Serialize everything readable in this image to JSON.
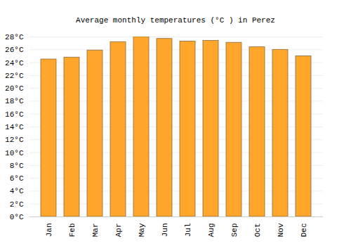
{
  "chart_data": {
    "type": "bar",
    "title": "Average monthly temperatures (°C ) in Perez",
    "categories": [
      "Jan",
      "Feb",
      "Mar",
      "Apr",
      "May",
      "Jun",
      "Jul",
      "Aug",
      "Sep",
      "Oct",
      "Nov",
      "Dec"
    ],
    "values": [
      24.5,
      24.8,
      25.9,
      27.2,
      28.0,
      27.7,
      27.3,
      27.4,
      27.1,
      26.4,
      26.0,
      25.0
    ],
    "color": "#ffa62b",
    "ylim": [
      0,
      28
    ],
    "yticks": [
      {
        "value": 0,
        "label": "0°C"
      },
      {
        "value": 2,
        "label": "2°C"
      },
      {
        "value": 4,
        "label": "4°C"
      },
      {
        "value": 6,
        "label": "6°C"
      },
      {
        "value": 8,
        "label": "8°C"
      },
      {
        "value": 10,
        "label": "10°C"
      },
      {
        "value": 12,
        "label": "12°C"
      },
      {
        "value": 14,
        "label": "14°C"
      },
      {
        "value": 16,
        "label": "16°C"
      },
      {
        "value": 18,
        "label": "18°C"
      },
      {
        "value": 20,
        "label": "20°C"
      },
      {
        "value": 22,
        "label": "22°C"
      },
      {
        "value": 24,
        "label": "24°C"
      },
      {
        "value": 26,
        "label": "26°C"
      },
      {
        "value": 28,
        "label": "28°C"
      }
    ],
    "grid": true
  }
}
